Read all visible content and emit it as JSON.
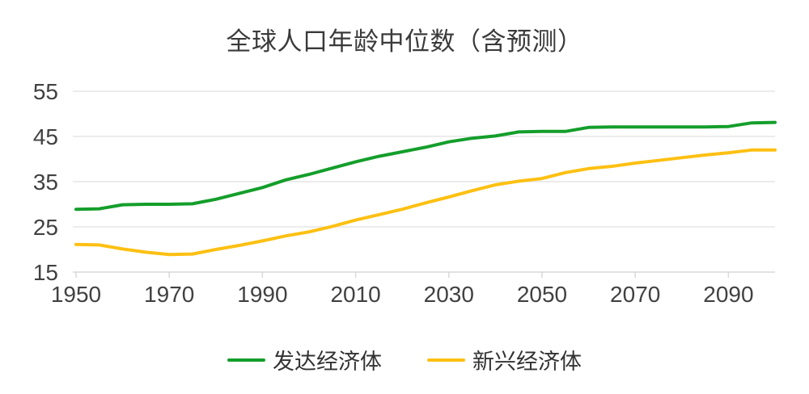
{
  "title": "全球人口年龄中位数（含预测）",
  "legend": [
    {
      "label": "发达经济体",
      "color": "#149e2b"
    },
    {
      "label": "新兴经济体",
      "color": "#fdc013"
    }
  ],
  "colors": {
    "developed_line": "#149e2b",
    "emerging_line": "#fdc013",
    "gridline": "#e6e6e6",
    "axis_line": "#d9d9d9",
    "label_text": "#414141"
  },
  "chart_data": {
    "type": "line",
    "title": "全球人口年龄中位数（含预测）",
    "xlabel": "",
    "ylabel": "",
    "xlim": [
      1950,
      2100
    ],
    "ylim": [
      15,
      55
    ],
    "xticks": [
      1950,
      1970,
      1990,
      2010,
      2030,
      2050,
      2070,
      2090
    ],
    "yticks": [
      15,
      25,
      35,
      45,
      55
    ],
    "grid": true,
    "legend_position": "bottom",
    "x": [
      1950,
      1955,
      1960,
      1965,
      1970,
      1975,
      1980,
      1985,
      1990,
      1995,
      2000,
      2005,
      2010,
      2015,
      2020,
      2025,
      2030,
      2035,
      2040,
      2045,
      2050,
      2055,
      2060,
      2065,
      2070,
      2075,
      2080,
      2085,
      2090,
      2095,
      2100
    ],
    "series": [
      {
        "name": "发达经济体",
        "color": "#149e2b",
        "values": [
          28.9,
          29.0,
          29.9,
          30.0,
          30.0,
          30.1,
          31.1,
          32.4,
          33.7,
          35.4,
          36.6,
          38.0,
          39.4,
          40.6,
          41.6,
          42.6,
          43.8,
          44.6,
          45.1,
          46.0,
          46.1,
          46.1,
          47.0,
          47.1,
          47.1,
          47.1,
          47.1,
          47.1,
          47.2,
          48.0,
          48.1
        ]
      },
      {
        "name": "新兴经济体",
        "color": "#fdc013",
        "values": [
          21.1,
          21.0,
          20.1,
          19.4,
          18.9,
          19.0,
          20.0,
          20.9,
          21.9,
          23.0,
          23.9,
          25.1,
          26.5,
          27.7,
          28.9,
          30.3,
          31.6,
          33.0,
          34.3,
          35.1,
          35.7,
          37.0,
          37.9,
          38.4,
          39.1,
          39.7,
          40.3,
          40.9,
          41.4,
          42.0,
          42.0
        ]
      }
    ]
  }
}
